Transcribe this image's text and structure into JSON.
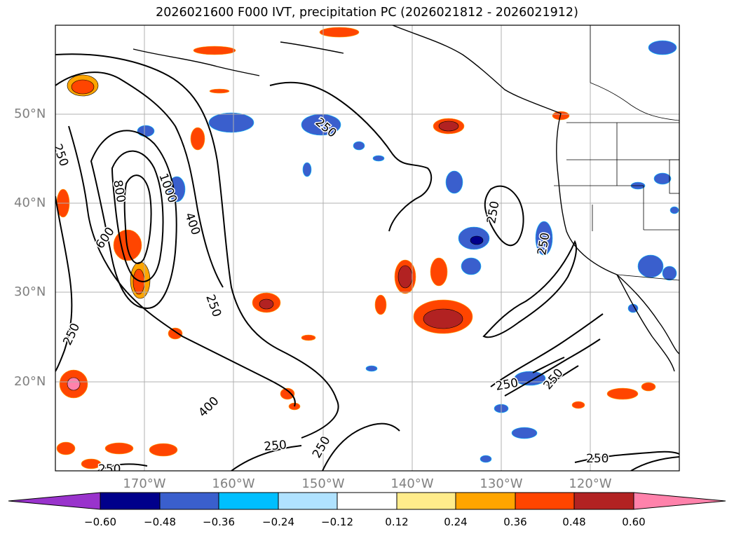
{
  "title": "2026021600 F000 IVT, precipitation PC (2026021812 - 2026021912)",
  "map": {
    "lat_labels": [
      "50°N",
      "40°N",
      "30°N",
      "20°N"
    ],
    "lon_labels": [
      "170°W",
      "160°W",
      "150°W",
      "140°W",
      "130°W",
      "120°W"
    ],
    "contour_labels": [
      "250",
      "400",
      "600",
      "800",
      "1000"
    ],
    "contour_label_instances": [
      "250",
      "250",
      "250",
      "250",
      "250",
      "250",
      "250",
      "250",
      "250",
      "250",
      "400",
      "400",
      "600",
      "800",
      "1000"
    ]
  },
  "colorbar": {
    "ticks": [
      "−0.60",
      "−0.48",
      "−0.36",
      "−0.24",
      "−0.12",
      "0.12",
      "0.24",
      "0.36",
      "0.48",
      "0.60"
    ],
    "colors": [
      "#9933cc",
      "#00008b",
      "#3a5fcd",
      "#00bfff",
      "#b0e2ff",
      "#ffffff",
      "#ffec8b",
      "#ffa500",
      "#ff4500",
      "#b22222",
      "#ff82ab"
    ]
  }
}
